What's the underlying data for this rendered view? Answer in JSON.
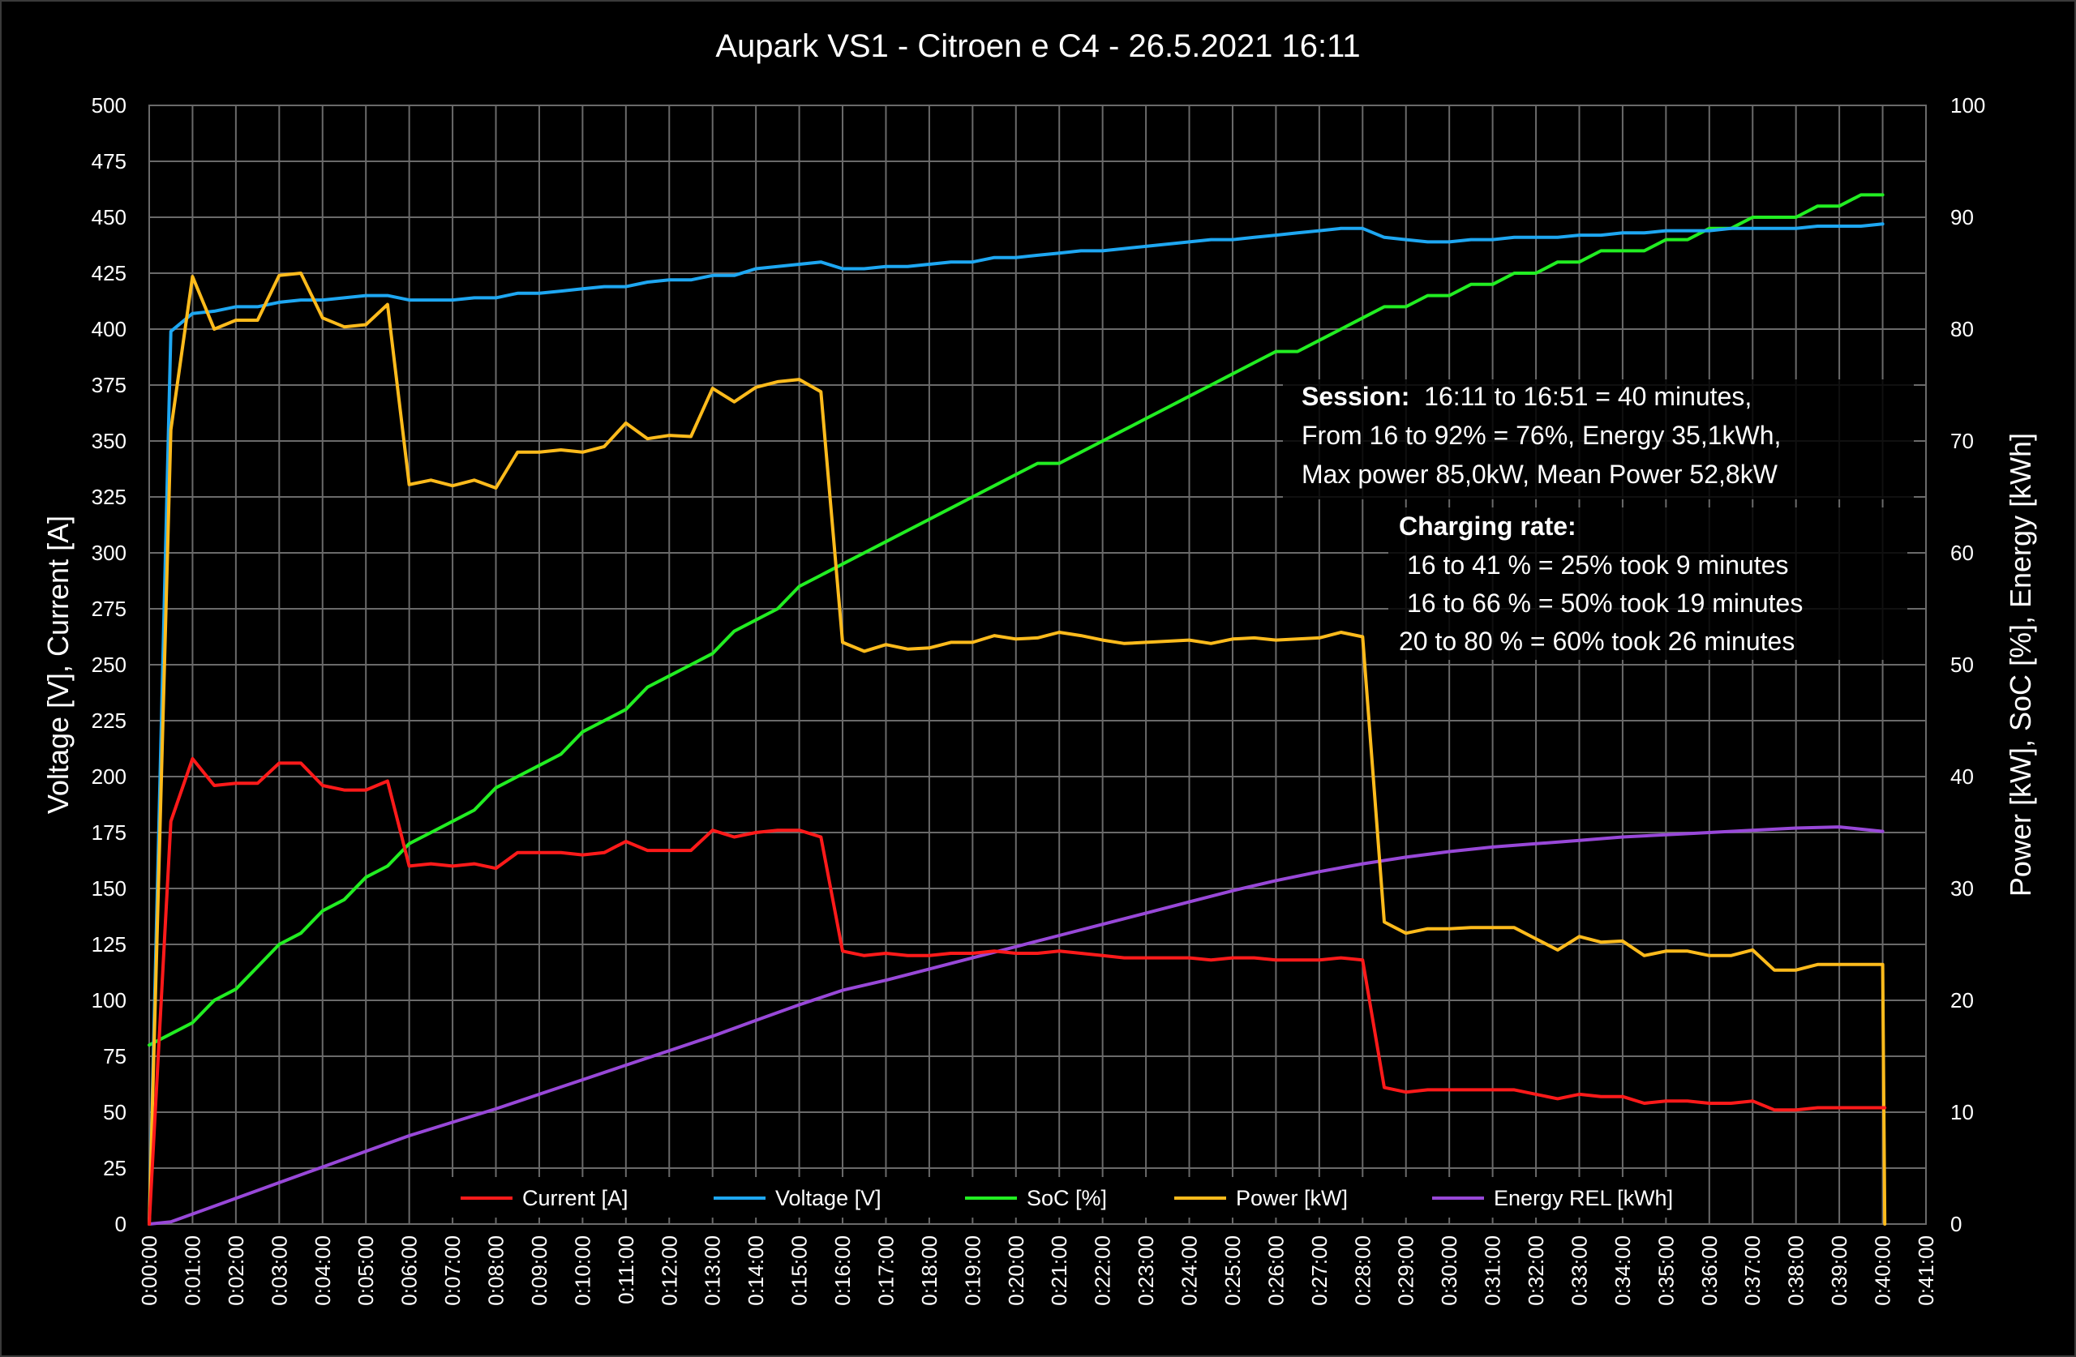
{
  "chart_data": {
    "type": "line",
    "title": "Aupark VS1 - Citroen e C4 - 26.5.2021 16:11",
    "ylabel": "Voltage [V], Current [A]",
    "y2label": "Power [kW], SoC [%], Energy [kWh]",
    "ylim": [
      0,
      500
    ],
    "y2lim": [
      0,
      100
    ],
    "xlim_minutes": [
      0,
      41
    ],
    "yticks": [
      "0",
      "25",
      "50",
      "75",
      "100",
      "125",
      "150",
      "175",
      "200",
      "225",
      "250",
      "275",
      "300",
      "325",
      "350",
      "375",
      "400",
      "425",
      "450",
      "475",
      "500"
    ],
    "y2ticks": [
      "0",
      "10",
      "20",
      "30",
      "40",
      "50",
      "60",
      "70",
      "80",
      "90",
      "100"
    ],
    "xticks": [
      "0:00:00",
      "0:01:00",
      "0:02:00",
      "0:03:00",
      "0:04:00",
      "0:05:00",
      "0:06:00",
      "0:07:00",
      "0:08:00",
      "0:09:00",
      "0:10:00",
      "0:11:00",
      "0:12:00",
      "0:13:00",
      "0:14:00",
      "0:15:00",
      "0:16:00",
      "0:17:00",
      "0:18:00",
      "0:19:00",
      "0:20:00",
      "0:21:00",
      "0:22:00",
      "0:23:00",
      "0:24:00",
      "0:25:00",
      "0:26:00",
      "0:27:00",
      "0:28:00",
      "0:29:00",
      "0:30:00",
      "0:31:00",
      "0:32:00",
      "0:33:00",
      "0:34:00",
      "0:35:00",
      "0:36:00",
      "0:37:00",
      "0:38:00",
      "0:39:00",
      "0:40:00",
      "0:41:00"
    ],
    "grid": true,
    "legend_position": "bottom",
    "x_unit": "minutes",
    "series": [
      {
        "name": "Current [A]",
        "axis": "left",
        "color": "#ff1a1a",
        "x": [
          0,
          0.5,
          1,
          1.5,
          2,
          2.5,
          3,
          3.5,
          4,
          4.5,
          5,
          5.5,
          6,
          6.5,
          7,
          7.5,
          8,
          8.5,
          9,
          9.5,
          10,
          10.5,
          11,
          11.5,
          12,
          12.5,
          13,
          13.5,
          14,
          14.5,
          15,
          15.5,
          16,
          16.5,
          17,
          17.5,
          18,
          18.5,
          19,
          19.5,
          20,
          20.5,
          21,
          21.5,
          22,
          22.5,
          23,
          23.5,
          24,
          24.5,
          25,
          25.5,
          26,
          26.5,
          27,
          27.5,
          28,
          28.5,
          29,
          29.5,
          30,
          30.5,
          31,
          31.5,
          32,
          32.5,
          33,
          33.5,
          34,
          34.5,
          35,
          35.5,
          36,
          36.5,
          37,
          37.5,
          38,
          38.5,
          39,
          39.5,
          40,
          40.05
        ],
        "y": [
          0,
          180,
          208,
          196,
          197,
          197,
          206,
          206,
          196,
          194,
          194,
          198,
          160,
          161,
          160,
          161,
          159,
          166,
          166,
          166,
          165,
          166,
          171,
          167,
          167,
          167,
          176,
          173,
          175,
          176,
          176,
          173,
          122,
          120,
          121,
          120,
          120,
          121,
          121,
          122,
          121,
          121,
          122,
          121,
          120,
          119,
          119,
          119,
          119,
          118,
          119,
          119,
          118,
          118,
          118,
          119,
          118,
          61,
          59,
          60,
          60,
          60,
          60,
          60,
          58,
          56,
          58,
          57,
          57,
          54,
          55,
          55,
          54,
          54,
          55,
          51,
          51,
          52,
          52,
          52,
          52,
          52
        ]
      },
      {
        "name": "Voltage [V]",
        "axis": "left",
        "color": "#1ea7f2",
        "x": [
          0,
          0.5,
          1,
          1.5,
          2,
          2.5,
          3,
          3.5,
          4,
          4.5,
          5,
          5.5,
          6,
          6.5,
          7,
          7.5,
          8,
          8.5,
          9,
          9.5,
          10,
          10.5,
          11,
          11.5,
          12,
          12.5,
          13,
          13.5,
          14,
          14.5,
          15,
          15.5,
          16,
          16.5,
          17,
          17.5,
          18,
          18.5,
          19,
          19.5,
          20,
          20.5,
          21,
          21.5,
          22,
          22.5,
          23,
          23.5,
          24,
          24.5,
          25,
          25.5,
          26,
          26.5,
          27,
          27.5,
          28,
          28.5,
          29,
          29.5,
          30,
          30.5,
          31,
          31.5,
          32,
          32.5,
          33,
          33.5,
          34,
          34.5,
          35,
          35.5,
          36,
          36.5,
          37,
          37.5,
          38,
          38.5,
          39,
          39.5,
          40
        ],
        "y": [
          0,
          399,
          407,
          408,
          410,
          410,
          412,
          413,
          413,
          414,
          415,
          415,
          413,
          413,
          413,
          414,
          414,
          416,
          416,
          417,
          418,
          419,
          419,
          421,
          422,
          422,
          424,
          424,
          427,
          428,
          429,
          430,
          427,
          427,
          428,
          428,
          429,
          430,
          430,
          432,
          432,
          433,
          434,
          435,
          435,
          436,
          437,
          438,
          439,
          440,
          440,
          441,
          442,
          443,
          444,
          445,
          445,
          441,
          440,
          439,
          439,
          440,
          440,
          441,
          441,
          441,
          442,
          442,
          443,
          443,
          444,
          444,
          444,
          445,
          445,
          445,
          445,
          446,
          446,
          446,
          447
        ]
      },
      {
        "name": "SoC [%]",
        "axis": "right",
        "color": "#22ee22",
        "x": [
          0,
          1,
          1.5,
          2,
          2.5,
          3,
          3.5,
          4,
          4.5,
          5,
          5.5,
          6,
          6.5,
          7,
          7.5,
          8,
          8.5,
          9,
          9.5,
          10,
          10.5,
          11,
          11.5,
          12,
          12.5,
          13,
          13.5,
          14,
          14.5,
          15,
          15.5,
          16,
          16.5,
          17,
          17.5,
          18,
          18.5,
          19,
          19.5,
          20,
          20.5,
          21,
          21.5,
          22,
          22.5,
          23,
          23.5,
          24,
          24.5,
          25,
          25.5,
          26,
          26.5,
          27,
          27.5,
          28,
          28.5,
          29,
          29.5,
          30,
          30.5,
          31,
          31.5,
          32,
          32.5,
          33,
          33.5,
          34,
          34.5,
          35,
          35.5,
          36,
          36.5,
          37,
          37.5,
          38,
          38.5,
          39,
          39.5,
          40
        ],
        "y": [
          16,
          18,
          20,
          21,
          23,
          25,
          26,
          28,
          29,
          31,
          32,
          34,
          35,
          36,
          37,
          39,
          40,
          41,
          42,
          44,
          45,
          46,
          48,
          49,
          50,
          51,
          53,
          54,
          55,
          57,
          58,
          59,
          60,
          61,
          62,
          63,
          64,
          65,
          66,
          67,
          68,
          68,
          69,
          70,
          71,
          72,
          73,
          74,
          75,
          76,
          77,
          78,
          78,
          79,
          80,
          81,
          82,
          82,
          83,
          83,
          84,
          84,
          85,
          85,
          86,
          86,
          87,
          87,
          87,
          88,
          88,
          89,
          89,
          90,
          90,
          90,
          91,
          91,
          92,
          92
        ]
      },
      {
        "name": "Power [kW]",
        "axis": "right",
        "color": "#ffbb1c",
        "x": [
          0,
          0.5,
          1,
          1.5,
          2,
          2.5,
          3,
          3.5,
          4,
          4.5,
          5,
          5.5,
          6,
          6.5,
          7,
          7.5,
          8,
          8.5,
          9,
          9.5,
          10,
          10.5,
          11,
          11.5,
          12,
          12.5,
          13,
          13.5,
          14,
          14.5,
          15,
          15.5,
          16,
          16.5,
          17,
          17.5,
          18,
          18.5,
          19,
          19.5,
          20,
          20.5,
          21,
          21.5,
          22,
          22.5,
          23,
          23.5,
          24,
          24.5,
          25,
          25.5,
          26,
          26.5,
          27,
          27.5,
          28,
          28.5,
          29,
          29.5,
          30,
          30.5,
          31,
          31.5,
          32,
          32.5,
          33,
          33.5,
          34,
          34.5,
          35,
          35.5,
          36,
          36.5,
          37,
          37.5,
          38,
          38.5,
          39,
          39.5,
          40,
          40.05
        ],
        "y": [
          0,
          71,
          84.7,
          80,
          80.8,
          80.8,
          84.8,
          85,
          81,
          80.2,
          80.4,
          82.2,
          66.1,
          66.5,
          66,
          66.5,
          65.8,
          69,
          69,
          69.2,
          69,
          69.5,
          71.6,
          70.2,
          70.5,
          70.4,
          74.7,
          73.5,
          74.8,
          75.3,
          75.5,
          74.4,
          52,
          51.2,
          51.8,
          51.4,
          51.5,
          52,
          52,
          52.6,
          52.3,
          52.4,
          52.9,
          52.6,
          52.2,
          51.9,
          52,
          52.1,
          52.2,
          51.9,
          52.3,
          52.4,
          52.2,
          52.3,
          52.4,
          52.9,
          52.5,
          27,
          26,
          26.4,
          26.4,
          26.5,
          26.5,
          26.5,
          25.5,
          24.5,
          25.7,
          25.2,
          25.3,
          24,
          24.4,
          24.4,
          24,
          24,
          24.5,
          22.7,
          22.7,
          23.2,
          23.2,
          23.2,
          23.2,
          0
        ]
      },
      {
        "name": "Energy REL [kWh]",
        "axis": "right",
        "color": "#9848d8",
        "x": [
          0,
          0.5,
          1,
          2,
          3,
          4,
          5,
          6,
          7,
          8,
          9,
          10,
          11,
          12,
          13,
          14,
          15,
          16,
          17,
          18,
          19,
          20,
          21,
          22,
          23,
          24,
          25,
          26,
          27,
          28,
          29,
          30,
          31,
          32,
          33,
          34,
          35,
          36,
          37,
          38,
          39,
          40
        ],
        "y": [
          0,
          0.2,
          0.9,
          2.3,
          3.7,
          5.1,
          6.5,
          7.9,
          9.1,
          10.3,
          11.6,
          12.9,
          14.2,
          15.5,
          16.8,
          18.2,
          19.6,
          20.9,
          21.8,
          22.8,
          23.8,
          24.8,
          25.8,
          26.8,
          27.8,
          28.8,
          29.8,
          30.7,
          31.5,
          32.2,
          32.8,
          33.3,
          33.7,
          34.0,
          34.3,
          34.6,
          34.8,
          35.0,
          35.2,
          35.4,
          35.5,
          35.1
        ]
      }
    ]
  },
  "annotation": {
    "session_label": "Session:",
    "session_text": "  16:11 to 16:51 = 40 minutes,",
    "line2": "From 16 to 92% = 76%, Energy 35,1kWh,",
    "line3": "Max power 85,0kW, Mean Power  52,8kW",
    "rate_title": "Charging rate:",
    "rate1": "16 to 41 % = 25% took   9 minutes",
    "rate2": "16 to 66 % = 50% took 19 minutes",
    "rate3": "20 to 80 % = 60% took  26 minutes"
  }
}
